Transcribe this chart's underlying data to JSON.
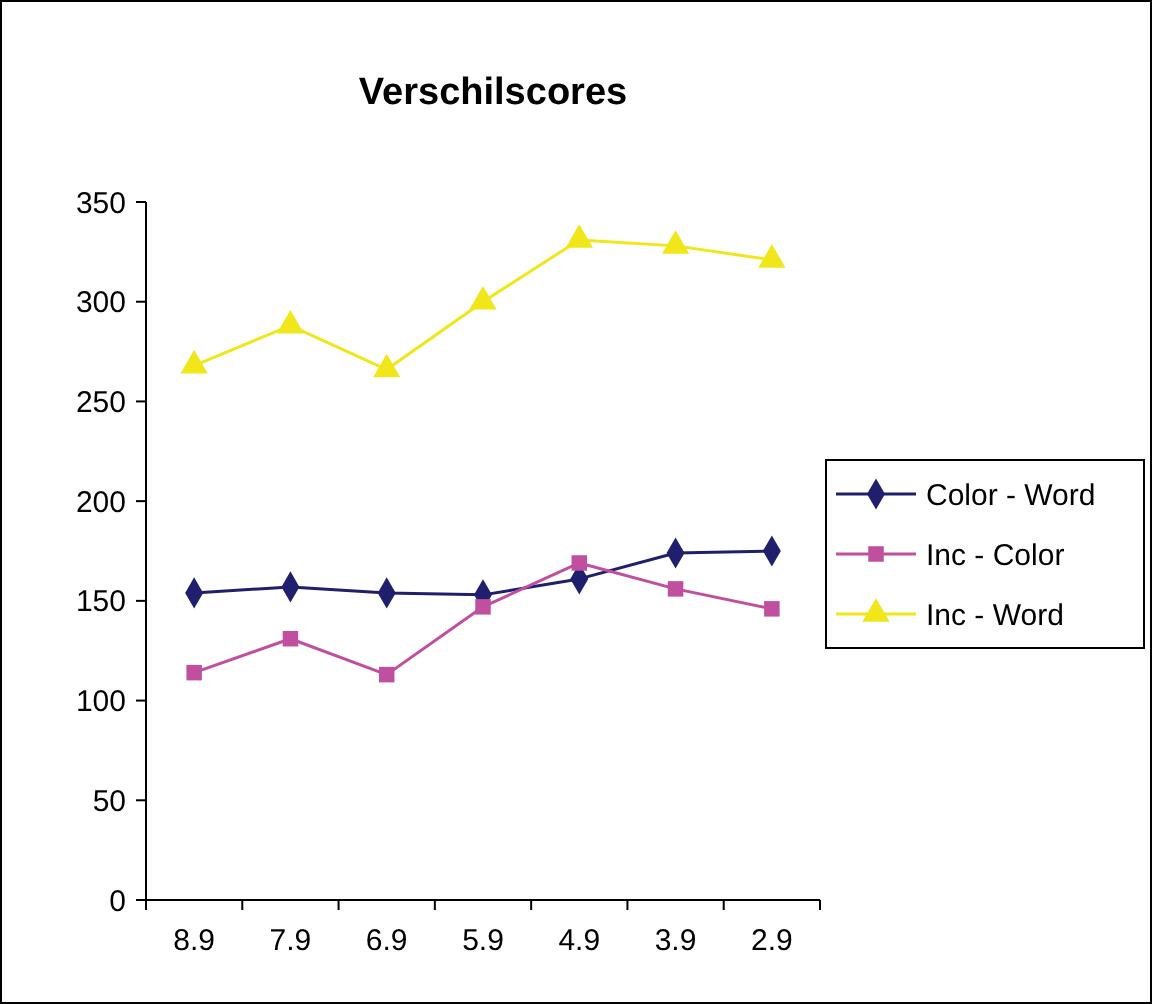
{
  "chart_data": {
    "type": "line",
    "title": "Verschilscores",
    "categories": [
      "8.9",
      "7.9",
      "6.9",
      "5.9",
      "4.9",
      "3.9",
      "2.9"
    ],
    "series": [
      {
        "name": "Color - Word",
        "color": "#1f1f6e",
        "marker": "diamond",
        "values": [
          154,
          157,
          154,
          153,
          161,
          174,
          175
        ]
      },
      {
        "name": "Inc - Color",
        "color": "#c04fa0",
        "marker": "square",
        "values": [
          114,
          131,
          113,
          147,
          169,
          156,
          146
        ]
      },
      {
        "name": "Inc - Word",
        "color": "#f0e61a",
        "marker": "triangle",
        "values": [
          268,
          288,
          266,
          300,
          331,
          328,
          321
        ]
      }
    ],
    "ylim": [
      0,
      350
    ],
    "yticks": [
      0,
      50,
      100,
      150,
      200,
      250,
      300,
      350
    ],
    "grid": false,
    "legend": "right"
  }
}
